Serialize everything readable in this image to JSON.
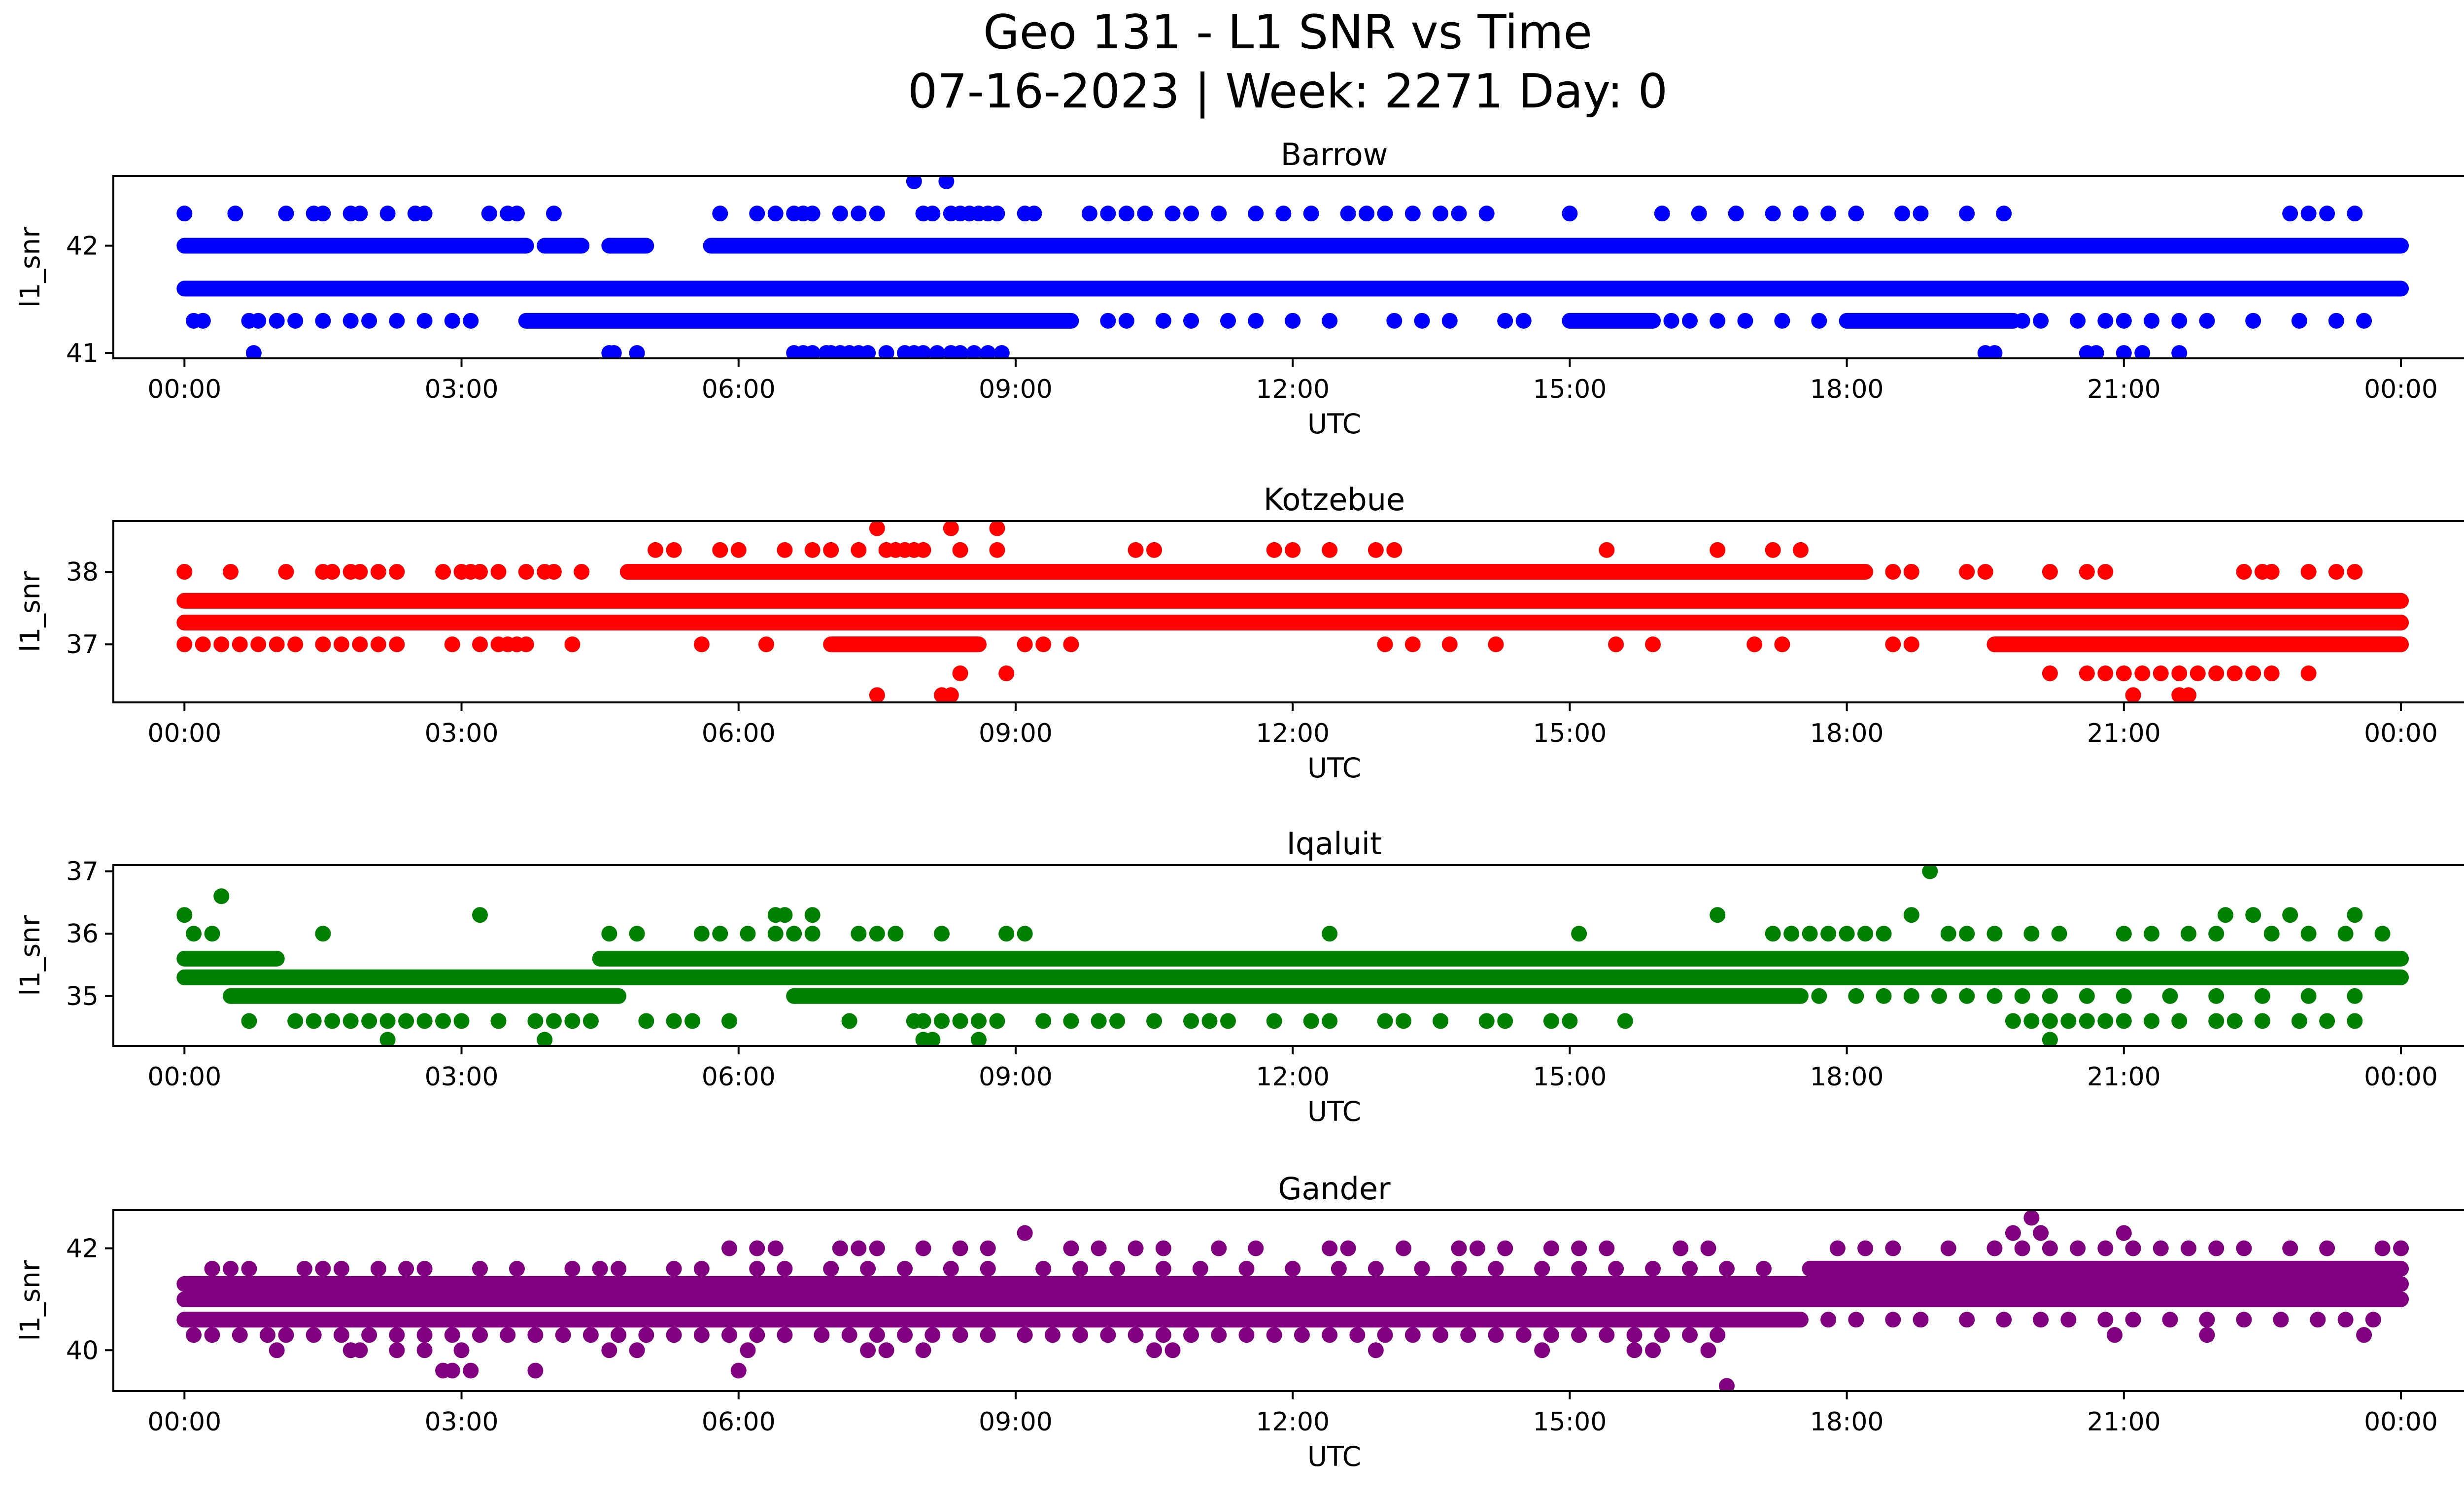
{
  "figure": {
    "title_line1": "Geo 131 - L1 SNR vs Time",
    "title_line2": "07-16-2023 | Week: 2271 Day: 0"
  },
  "chart_data": [
    {
      "type": "scatter",
      "title": "Barrow",
      "color": "#0000ff",
      "xlabel": "UTC",
      "ylabel": "l1_snr",
      "xlim": [
        -0.77,
        25.67
      ],
      "ylim": [
        40.95,
        42.65
      ],
      "x_ticks": [
        "00:00",
        "03:00",
        "06:00",
        "09:00",
        "12:00",
        "15:00",
        "18:00",
        "21:00",
        "00:00"
      ],
      "y_ticks": [
        41,
        42
      ],
      "bands": [
        {
          "y": 42.0,
          "segments": [
            [
              0,
              3.7
            ],
            [
              3.9,
              4.3
            ],
            [
              4.6,
              5.0
            ],
            [
              5.7,
              24.0
            ]
          ]
        },
        {
          "y": 41.6,
          "segments": [
            [
              0,
              24.0
            ]
          ]
        },
        {
          "y": 41.3,
          "segments": [
            [
              3.7,
              9.6
            ],
            [
              15.0,
              15.9
            ],
            [
              18.0,
              19.8
            ]
          ]
        }
      ],
      "points": [
        {
          "y": 42.3,
          "x": [
            0.0,
            0.55,
            1.1,
            1.4,
            1.5,
            1.8,
            1.9,
            2.2,
            2.5,
            2.6,
            3.3,
            3.5,
            3.6,
            4.0,
            5.8,
            6.2,
            6.4,
            6.6,
            6.7,
            6.8,
            7.1,
            7.3,
            7.5,
            8.0,
            8.1,
            8.3,
            8.4,
            8.5,
            8.6,
            8.7,
            8.8,
            9.1,
            9.2,
            9.8,
            10.0,
            10.2,
            10.4,
            10.7,
            10.9,
            11.2,
            11.6,
            11.9,
            12.2,
            12.6,
            12.8,
            13.0,
            13.3,
            13.6,
            13.8,
            14.1,
            15.0,
            16.0,
            16.4,
            16.8,
            17.2,
            17.5,
            17.8,
            18.1,
            18.6,
            18.8,
            19.3,
            19.7,
            22.8,
            23.0,
            23.2,
            23.5
          ]
        },
        {
          "y": 41.3,
          "x": [
            0.1,
            0.2,
            0.7,
            0.8,
            1.0,
            1.2,
            1.5,
            1.8,
            2.0,
            2.3,
            2.6,
            2.9,
            3.1,
            10.0,
            10.2,
            10.6,
            10.9,
            11.3,
            11.6,
            12.0,
            12.4,
            13.1,
            13.4,
            13.7,
            14.3,
            14.5,
            16.1,
            16.3,
            16.6,
            16.9,
            17.3,
            17.7,
            19.9,
            20.1,
            20.5,
            20.8,
            21.0,
            21.3,
            21.6,
            21.9,
            22.4,
            22.9,
            23.3,
            23.6
          ]
        },
        {
          "y": 41.0,
          "x": [
            0.75,
            4.6,
            4.65,
            4.9,
            6.6,
            6.7,
            6.8,
            6.95,
            7.0,
            7.1,
            7.2,
            7.3,
            7.4,
            7.6,
            7.8,
            7.9,
            8.0,
            8.15,
            8.3,
            8.4,
            8.55,
            8.7,
            8.85,
            19.5,
            19.6,
            20.6,
            20.7,
            21.0,
            21.2,
            21.6
          ]
        },
        {
          "y": 42.6,
          "x": [
            7.9,
            8.25
          ]
        }
      ]
    },
    {
      "type": "scatter",
      "title": "Kotzebue",
      "color": "#ff0000",
      "xlabel": "UTC",
      "ylabel": "l1_snr",
      "xlim": [
        -0.77,
        25.67
      ],
      "ylim": [
        36.2,
        38.7
      ],
      "x_ticks": [
        "00:00",
        "03:00",
        "06:00",
        "09:00",
        "12:00",
        "15:00",
        "18:00",
        "21:00",
        "00:00"
      ],
      "y_ticks": [
        37,
        38
      ],
      "bands": [
        {
          "y": 38.0,
          "segments": [
            [
              4.8,
              18.2
            ]
          ]
        },
        {
          "y": 37.6,
          "segments": [
            [
              0,
              24.0
            ]
          ]
        },
        {
          "y": 37.3,
          "segments": [
            [
              0,
              24.0
            ]
          ]
        },
        {
          "y": 37.0,
          "segments": [
            [
              7.0,
              8.6
            ],
            [
              19.6,
              24.0
            ]
          ]
        }
      ],
      "points": [
        {
          "y": 38.0,
          "x": [
            0.0,
            0.5,
            1.1,
            1.5,
            1.6,
            1.8,
            1.9,
            2.1,
            2.3,
            2.8,
            3.0,
            3.1,
            3.2,
            3.4,
            3.7,
            3.9,
            4.0,
            4.3,
            18.5,
            18.7,
            19.3,
            19.5,
            20.2,
            20.6,
            20.8,
            22.3,
            22.5,
            22.6,
            23.0,
            23.3,
            23.5
          ]
        },
        {
          "y": 37.0,
          "x": [
            0.0,
            0.2,
            0.4,
            0.6,
            0.8,
            1.0,
            1.2,
            1.5,
            1.7,
            1.9,
            2.1,
            2.3,
            2.9,
            3.2,
            3.4,
            3.5,
            3.6,
            3.7,
            4.2,
            5.6,
            6.3,
            9.1,
            9.3,
            9.6,
            13.0,
            13.3,
            13.7,
            14.2,
            15.5,
            15.9,
            17.0,
            17.3,
            18.5,
            18.7
          ]
        },
        {
          "y": 38.3,
          "x": [
            5.1,
            5.3,
            5.8,
            6.0,
            6.5,
            6.8,
            7.0,
            7.3,
            7.6,
            7.7,
            7.8,
            7.9,
            8.0,
            8.4,
            8.8,
            10.3,
            10.5,
            11.8,
            12.0,
            12.4,
            12.9,
            13.1,
            15.4,
            16.6,
            17.2,
            17.5
          ]
        },
        {
          "y": 38.6,
          "x": [
            7.5,
            8.3,
            8.8
          ]
        },
        {
          "y": 36.6,
          "x": [
            8.4,
            8.9,
            20.2,
            20.6,
            20.8,
            21.0,
            21.2,
            21.4,
            21.6,
            21.8,
            22.0,
            22.2,
            22.4,
            22.6,
            23.0
          ]
        },
        {
          "y": 36.3,
          "x": [
            7.5,
            8.2,
            8.3,
            21.1,
            21.6,
            21.7
          ]
        }
      ]
    },
    {
      "type": "scatter",
      "title": "Iqaluit",
      "color": "#008000",
      "xlabel": "UTC",
      "ylabel": "l1_snr",
      "xlim": [
        -0.77,
        25.67
      ],
      "ylim": [
        34.2,
        37.1
      ],
      "x_ticks": [
        "00:00",
        "03:00",
        "06:00",
        "09:00",
        "12:00",
        "15:00",
        "18:00",
        "21:00",
        "00:00"
      ],
      "y_ticks": [
        35,
        36,
        37
      ],
      "bands": [
        {
          "y": 35.6,
          "segments": [
            [
              0,
              1.0
            ],
            [
              4.5,
              24.0
            ]
          ]
        },
        {
          "y": 35.3,
          "segments": [
            [
              0,
              24.0
            ]
          ]
        },
        {
          "y": 35.0,
          "segments": [
            [
              0.5,
              4.7
            ],
            [
              6.6,
              17.5
            ]
          ]
        }
      ],
      "points": [
        {
          "y": 36.0,
          "x": [
            0.1,
            0.3,
            1.5,
            4.6,
            4.9,
            5.6,
            5.8,
            6.1,
            6.4,
            6.6,
            6.8,
            7.3,
            7.5,
            7.7,
            8.2,
            8.9,
            9.1,
            12.4,
            15.1,
            17.2,
            17.4,
            17.6,
            17.8,
            18.0,
            18.2,
            18.4,
            19.1,
            19.3,
            19.6,
            20.0,
            20.3,
            21.0,
            21.3,
            21.7,
            22.0,
            22.6,
            23.0,
            23.4,
            23.8
          ]
        },
        {
          "y": 36.3,
          "x": [
            0.0,
            3.2,
            6.4,
            6.5,
            6.8,
            16.6,
            18.7,
            22.1,
            22.4,
            22.8,
            23.5
          ]
        },
        {
          "y": 36.6,
          "x": [
            0.4
          ]
        },
        {
          "y": 37.0,
          "x": [
            18.9
          ]
        },
        {
          "y": 34.6,
          "x": [
            0.7,
            1.2,
            1.4,
            1.6,
            1.8,
            2.0,
            2.2,
            2.4,
            2.6,
            2.8,
            3.0,
            3.4,
            3.8,
            4.0,
            4.2,
            4.4,
            5.0,
            5.3,
            5.5,
            5.9,
            7.2,
            7.9,
            8.0,
            8.2,
            8.4,
            8.6,
            8.8,
            9.3,
            9.6,
            9.9,
            10.1,
            10.5,
            10.9,
            11.1,
            11.3,
            11.8,
            12.2,
            12.4,
            13.0,
            13.2,
            13.6,
            14.1,
            14.3,
            14.8,
            15.0,
            15.6,
            19.8,
            20.0,
            20.2,
            20.4,
            20.6,
            20.8,
            21.0,
            21.3,
            21.6,
            22.0,
            22.2,
            22.5,
            22.9,
            23.2,
            23.5
          ]
        },
        {
          "y": 34.3,
          "x": [
            2.2,
            3.9,
            8.0,
            8.1,
            8.6,
            20.2
          ]
        },
        {
          "y": 35.0,
          "x": [
            17.7,
            18.1,
            18.4,
            18.7,
            19.0,
            19.3,
            19.6,
            19.9,
            20.2,
            20.6,
            21.0,
            21.5,
            22.0,
            22.5,
            23.0,
            23.5
          ]
        }
      ]
    },
    {
      "type": "scatter",
      "title": "Gander",
      "color": "#800080",
      "xlabel": "UTC",
      "ylabel": "l1_snr",
      "xlim": [
        -0.77,
        25.67
      ],
      "ylim": [
        39.2,
        42.75
      ],
      "x_ticks": [
        "00:00",
        "03:00",
        "06:00",
        "09:00",
        "12:00",
        "15:00",
        "18:00",
        "21:00",
        "00:00"
      ],
      "y_ticks": [
        40,
        42
      ],
      "bands": [
        {
          "y": 41.6,
          "segments": [
            [
              17.6,
              24.0
            ]
          ]
        },
        {
          "y": 41.3,
          "segments": [
            [
              0,
              24.0
            ]
          ]
        },
        {
          "y": 41.0,
          "segments": [
            [
              0,
              24.0
            ]
          ]
        },
        {
          "y": 40.6,
          "segments": [
            [
              0,
              17.5
            ]
          ]
        }
      ],
      "points": [
        {
          "y": 41.6,
          "x": [
            0.3,
            0.5,
            0.7,
            1.3,
            1.5,
            1.7,
            2.1,
            2.4,
            2.6,
            3.2,
            3.6,
            4.2,
            4.5,
            4.7,
            5.3,
            5.6,
            6.2,
            6.5,
            7.0,
            7.4,
            7.8,
            8.3,
            8.7,
            9.3,
            9.7,
            10.1,
            10.6,
            11.0,
            11.5,
            12.0,
            12.5,
            12.9,
            13.4,
            13.8,
            14.2,
            14.7,
            15.1,
            15.5,
            15.9,
            16.3,
            16.7,
            17.1
          ]
        },
        {
          "y": 42.0,
          "x": [
            5.9,
            6.2,
            6.4,
            7.1,
            7.3,
            7.5,
            8.0,
            8.4,
            8.7,
            9.6,
            9.9,
            10.3,
            10.6,
            11.2,
            11.6,
            12.4,
            12.6,
            13.2,
            13.8,
            14.0,
            14.3,
            14.8,
            15.1,
            15.4,
            16.2,
            16.5,
            17.9,
            18.2,
            18.5,
            19.1,
            19.6,
            19.9,
            20.2,
            20.5,
            20.8,
            21.1,
            21.4,
            21.7,
            22.0,
            22.3,
            22.8,
            23.2,
            23.8,
            24.0
          ]
        },
        {
          "y": 42.3,
          "x": [
            9.1,
            19.8,
            20.1,
            21.0
          ]
        },
        {
          "y": 42.6,
          "x": [
            20.0
          ]
        },
        {
          "y": 40.3,
          "x": [
            0.1,
            0.3,
            0.6,
            0.9,
            1.1,
            1.4,
            1.7,
            2.0,
            2.3,
            2.6,
            2.9,
            3.2,
            3.5,
            3.8,
            4.1,
            4.4,
            4.7,
            5.0,
            5.3,
            5.6,
            5.9,
            6.2,
            6.5,
            6.9,
            7.2,
            7.5,
            7.8,
            8.1,
            8.4,
            8.7,
            9.1,
            9.4,
            9.7,
            10.0,
            10.3,
            10.6,
            10.9,
            11.2,
            11.5,
            11.8,
            12.1,
            12.4,
            12.7,
            13.0,
            13.3,
            13.6,
            13.9,
            14.2,
            14.5,
            14.8,
            15.1,
            15.4,
            15.7,
            16.0,
            16.3,
            16.6
          ]
        },
        {
          "y": 40.0,
          "x": [
            1.0,
            1.8,
            1.9,
            2.3,
            2.6,
            3.0,
            4.6,
            4.9,
            6.1,
            7.4,
            7.6,
            8.0,
            10.5,
            10.7,
            12.9,
            14.7,
            15.7,
            15.9,
            16.5
          ]
        },
        {
          "y": 39.6,
          "x": [
            2.8,
            2.9,
            3.1,
            3.8,
            6.0
          ]
        },
        {
          "y": 39.3,
          "x": [
            16.7
          ]
        },
        {
          "y": 40.6,
          "x": [
            17.8,
            18.1,
            18.5,
            18.8,
            19.3,
            19.7,
            20.1,
            20.4,
            20.8,
            21.1,
            21.5,
            21.9,
            22.3,
            22.7,
            23.1,
            23.4,
            23.7
          ]
        },
        {
          "y": 40.3,
          "x": [
            20.9,
            21.9,
            23.6
          ]
        }
      ]
    }
  ]
}
